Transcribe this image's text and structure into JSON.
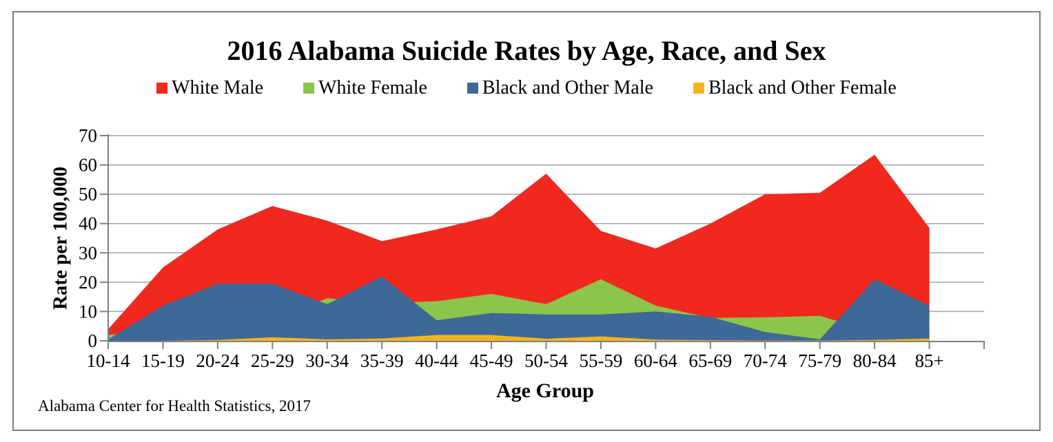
{
  "frame": {
    "source_note": "Alabama Center for Health Statistics, 2017"
  },
  "chart_data": {
    "type": "area",
    "overlapping": true,
    "title": "2016 Alabama Suicide Rates by Age, Race, and Sex",
    "xlabel": "Age Group",
    "ylabel": "Rate per 100,000",
    "ylim": [
      0,
      70
    ],
    "yticks": [
      0,
      10,
      20,
      30,
      40,
      50,
      60,
      70
    ],
    "grid": true,
    "legend_position": "top",
    "grid_color": "#a3a3a3",
    "axis_color": "#7f7f7f",
    "categories": [
      "10-14",
      "15-19",
      "20-24",
      "25-29",
      "30-34",
      "35-39",
      "40-44",
      "45-49",
      "50-54",
      "55-59",
      "60-64",
      "65-69",
      "70-74",
      "75-79",
      "80-84",
      "85+"
    ],
    "series": [
      {
        "name": "White Male",
        "color": "#f0281e",
        "values": [
          4,
          25,
          38,
          46,
          41,
          34,
          38,
          42.5,
          57,
          37.5,
          31.5,
          40,
          50,
          50.5,
          63.5,
          38.5
        ]
      },
      {
        "name": "White Female",
        "color": "#8dc44c",
        "values": [
          2,
          4,
          5.5,
          7,
          14.5,
          13,
          13.5,
          16,
          12.5,
          21,
          12,
          7.8,
          8,
          8.5,
          3,
          2
        ]
      },
      {
        "name": "Black and Other Male",
        "color": "#3e6897",
        "values": [
          0.5,
          12,
          19.5,
          19.5,
          12.5,
          22,
          7,
          9.5,
          9,
          9,
          10,
          8.2,
          3,
          0.5,
          21,
          12
        ]
      },
      {
        "name": "Black and Other Female",
        "color": "#f6b41c",
        "values": [
          0,
          0,
          0.3,
          1.2,
          0.5,
          0.8,
          2,
          2,
          0.7,
          1.5,
          0.4,
          0.2,
          0.1,
          0.1,
          0.3,
          0.8
        ]
      }
    ]
  }
}
